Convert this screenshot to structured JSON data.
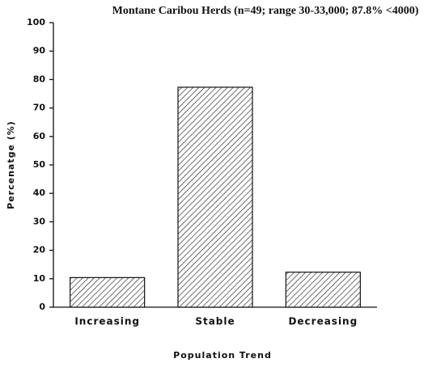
{
  "chart_data": {
    "type": "bar",
    "title": "Montane Caribou Herds (n=49; range 30-33,000; 87.8% <4000)",
    "x_label": "Population Trend",
    "y_label": "Percenatge (%)",
    "categories": [
      "Increasing",
      "Stable",
      "Decreasing"
    ],
    "values": [
      10.4,
      77.3,
      12.3
    ],
    "color": "#111111",
    "ylim": [
      0,
      100
    ],
    "yticks": [
      0,
      10,
      20,
      30,
      40,
      50,
      60,
      70,
      80,
      90,
      100
    ],
    "grid": false
  }
}
